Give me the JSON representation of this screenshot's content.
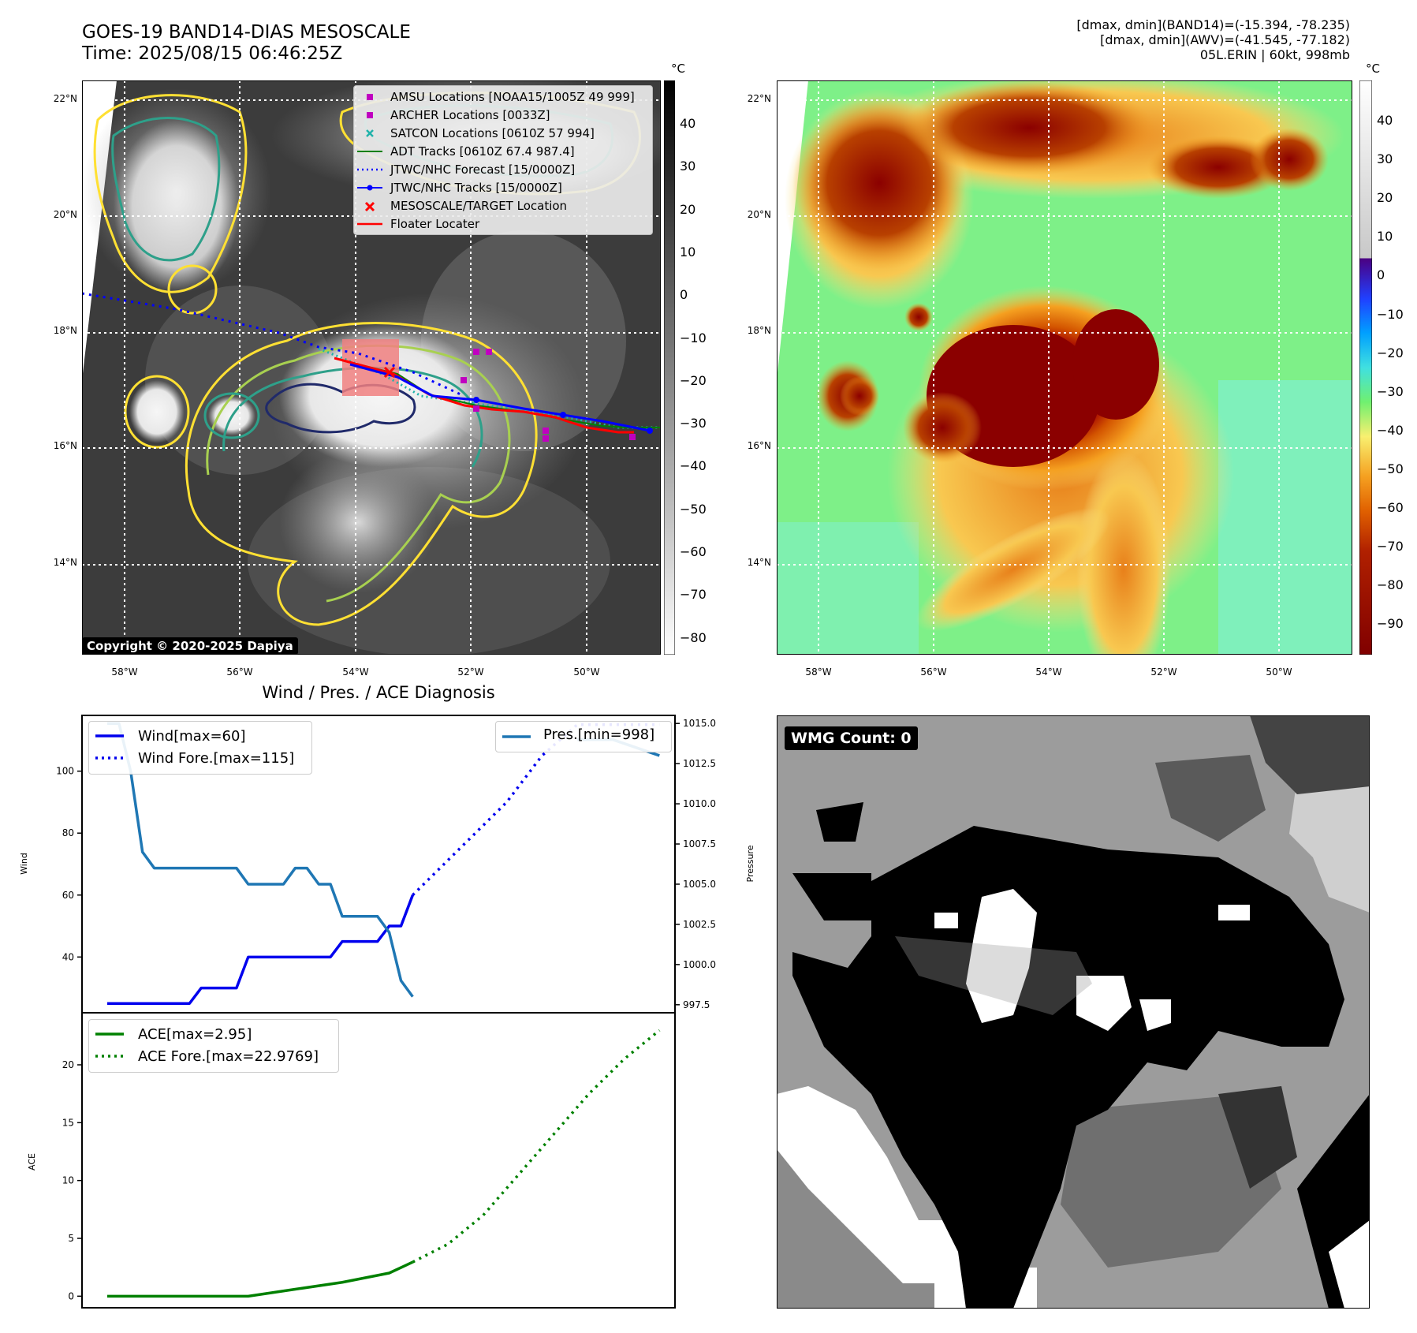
{
  "header": {
    "title_line1": "GOES-19 BAND14-DIAS MESOSCALE",
    "title_line2": "Time: 2025/08/15 06:46:25Z",
    "info_line1": "[dmax, dmin](BAND14)=(-15.394, -78.235)",
    "info_line2": "[dmax, dmin](AWV)=(-41.545, -77.182)",
    "info_line3": "05L.ERIN | 60kt, 998mb"
  },
  "copyright": "Copyright © 2020-2025 Dapiya",
  "colorbar_unit": "°C",
  "colorbar_left_ticks": [
    "40",
    "30",
    "20",
    "10",
    "0",
    "−10",
    "−20",
    "−30",
    "−40",
    "−50",
    "−60",
    "−70",
    "−80"
  ],
  "colorbar_right_ticks": [
    "40",
    "30",
    "20",
    "10",
    "0",
    "−10",
    "−20",
    "−30",
    "−40",
    "−50",
    "−60",
    "−70",
    "−80",
    "−90"
  ],
  "map_lat_labels": [
    "22°N",
    "20°N",
    "18°N",
    "16°N",
    "14°N"
  ],
  "map_lon_labels": [
    "58°W",
    "56°W",
    "54°W",
    "52°W",
    "50°W"
  ],
  "legend": [
    {
      "label": "AMSU Locations [NOAA15/1005Z 49 999]",
      "color": "#c000c0",
      "marker": "square"
    },
    {
      "label": "ARCHER Locations [0033Z]",
      "color": "#c000c0",
      "marker": "square"
    },
    {
      "label": "SATCON Locations [0610Z 57 994]",
      "color": "#20b2aa",
      "marker": "x"
    },
    {
      "label": "ADT Tracks [0610Z 67.4 987.4]",
      "color": "#008000",
      "marker": "line"
    },
    {
      "label": "JTWC/NHC Forecast [15/0000Z]",
      "color": "#0000ff",
      "marker": "dotted"
    },
    {
      "label": "JTWC/NHC Tracks [15/0000Z]",
      "color": "#0000ff",
      "marker": "line-dot"
    },
    {
      "label": "MESOSCALE/TARGET Location",
      "color": "#ff0000",
      "marker": "x"
    },
    {
      "label": "Floater Locater",
      "color": "#ff0000",
      "marker": "line"
    }
  ],
  "wmg_label": "WMG Count: 0",
  "diag_title": "Wind / Pres. / ACE Diagnosis",
  "chart_data": [
    {
      "type": "line",
      "title": "Wind / Pres. / ACE Diagnosis",
      "ylabel": "Wind",
      "y2label": "Pressure",
      "ylim": [
        22,
        118
      ],
      "y2lim": [
        997,
        1015.5
      ],
      "yticks": [
        40,
        60,
        80,
        100
      ],
      "y2ticks": [
        "997.5",
        "1000.0",
        "1002.5",
        "1005.0",
        "1007.5",
        "1010.0",
        "1012.5",
        "1015.0"
      ],
      "legend_left": [
        "Wind[max=60]",
        "Wind Fore.[max=115]"
      ],
      "legend_right": [
        "Pres.[min=998]"
      ],
      "series": [
        {
          "name": "Wind[max=60]",
          "color": "#0000ee",
          "style": "solid",
          "axis": "left",
          "x": [
            0,
            1,
            2,
            3,
            4,
            5,
            6,
            7,
            8,
            9,
            10,
            11,
            12,
            13,
            14,
            15,
            16,
            17,
            18,
            19,
            20,
            21,
            22,
            23,
            24,
            25,
            26
          ],
          "values": [
            25,
            25,
            25,
            25,
            25,
            25,
            25,
            25,
            30,
            30,
            30,
            30,
            40,
            40,
            40,
            40,
            40,
            40,
            40,
            40,
            45,
            45,
            45,
            45,
            50,
            50,
            60
          ]
        },
        {
          "name": "Wind Fore.[max=115]",
          "color": "#0000ee",
          "style": "dotted",
          "axis": "left",
          "x": [
            26,
            30,
            34,
            37,
            40,
            44,
            47
          ],
          "values": [
            60,
            75,
            90,
            105,
            115,
            115,
            115
          ]
        },
        {
          "name": "Pres.[min=998]",
          "color": "#1f77b4",
          "style": "solid",
          "axis": "right",
          "x": [
            0,
            1,
            2,
            3,
            4,
            5,
            6,
            7,
            8,
            9,
            10,
            11,
            12,
            13,
            14,
            15,
            16,
            17,
            18,
            19,
            20,
            21,
            22,
            23,
            24,
            25,
            26
          ],
          "values": [
            1015,
            1015,
            1012,
            1007,
            1006,
            1006,
            1006,
            1006,
            1006,
            1006,
            1006,
            1006,
            1005,
            1005,
            1005,
            1005,
            1006,
            1006,
            1005,
            1005,
            1003,
            1003,
            1003,
            1003,
            1002,
            999,
            998
          ]
        },
        {
          "name": "",
          "color": "#1f77b4",
          "style": "solid",
          "axis": "right",
          "x": [
            40,
            43,
            47
          ],
          "values": [
            1014,
            1014,
            1013
          ]
        }
      ]
    },
    {
      "type": "line",
      "ylabel": "ACE",
      "ylim": [
        -1,
        24.5
      ],
      "yticks": [
        0,
        5,
        10,
        15,
        20
      ],
      "legend_left": [
        "ACE[max=2.95]",
        "ACE Fore.[max=22.9769]"
      ],
      "series": [
        {
          "name": "ACE[max=2.95]",
          "color": "#008000",
          "style": "solid",
          "x": [
            0,
            4,
            8,
            12,
            16,
            20,
            24,
            26
          ],
          "values": [
            0,
            0,
            0,
            0,
            0.6,
            1.2,
            2.0,
            2.95
          ]
        },
        {
          "name": "ACE Fore.[max=22.9769]",
          "color": "#008000",
          "style": "dotted",
          "x": [
            26,
            29,
            32,
            35,
            38,
            41,
            44,
            47
          ],
          "values": [
            2.95,
            4.5,
            7,
            10.5,
            14,
            17.5,
            20.5,
            22.98
          ]
        }
      ]
    }
  ]
}
